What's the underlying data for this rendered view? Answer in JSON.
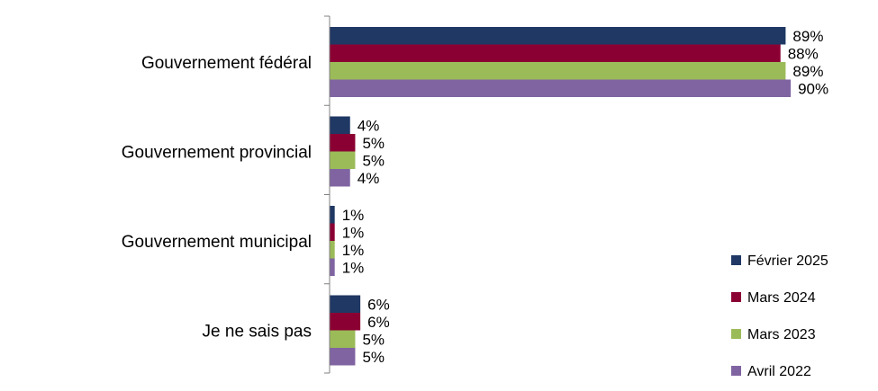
{
  "chart_data": {
    "type": "bar",
    "orientation": "horizontal",
    "categories": [
      "Gouvernement fédéral",
      "Gouvernement provincial",
      "Gouvernement municipal",
      "Je ne sais pas"
    ],
    "series": [
      {
        "name": "Février 2025",
        "color": "#1f3864",
        "values": [
          89,
          4,
          1,
          6
        ],
        "labels": [
          "89%",
          "4%",
          "1%",
          "6%"
        ]
      },
      {
        "name": "Mars 2024",
        "color": "#8b0033",
        "values": [
          88,
          5,
          1,
          6
        ],
        "labels": [
          "88%",
          "5%",
          "1%",
          "6%"
        ]
      },
      {
        "name": "Mars 2023",
        "color": "#9bbb59",
        "values": [
          89,
          5,
          1,
          5
        ],
        "labels": [
          "89%",
          "5%",
          "1%",
          "5%"
        ]
      },
      {
        "name": "Avril 2022",
        "color": "#8064a2",
        "values": [
          90,
          4,
          1,
          5
        ],
        "labels": [
          "90%",
          "4%",
          "1%",
          "5%"
        ]
      }
    ],
    "xlim": [
      0,
      100
    ],
    "grid": false,
    "legend_position": "bottom-right"
  }
}
